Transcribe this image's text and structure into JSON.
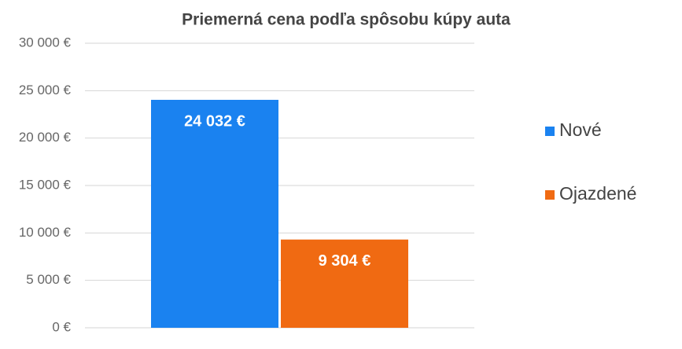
{
  "chart_data": {
    "type": "bar",
    "title": "Priemerná cena podľa spôsobu kúpy auta",
    "categories": [
      null
    ],
    "series": [
      {
        "name": "Nové",
        "color": "#1a82f0",
        "values": [
          24032
        ],
        "value_labels": [
          "24 032 €"
        ]
      },
      {
        "name": "Ojazdené",
        "color": "#f06a12",
        "values": [
          9304
        ],
        "value_labels": [
          "9 304 €"
        ]
      }
    ],
    "ylim": [
      0,
      30000
    ],
    "yticks": [
      {
        "value": 0,
        "label": "0 €"
      },
      {
        "value": 5000,
        "label": "5 000 €"
      },
      {
        "value": 10000,
        "label": "10 000 €"
      },
      {
        "value": 15000,
        "label": "15 000 €"
      },
      {
        "value": 20000,
        "label": "20 000 €"
      },
      {
        "value": 25000,
        "label": "25 000 €"
      },
      {
        "value": 30000,
        "label": "30 000 €"
      }
    ],
    "grid": true,
    "legend": "right"
  }
}
